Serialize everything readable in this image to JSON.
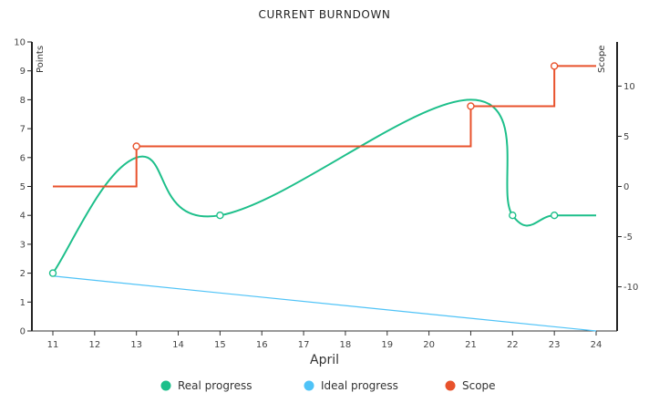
{
  "chart_data": {
    "type": "line",
    "title": "CURRENT BURNDOWN",
    "xlabel": "April",
    "ylabel_left": "Points",
    "ylabel_right": "Scope",
    "x_ticks": [
      11,
      12,
      13,
      14,
      15,
      16,
      17,
      18,
      19,
      20,
      21,
      22,
      23,
      24
    ],
    "ylim_left": [
      0,
      10
    ],
    "yticks_left": [
      0,
      1,
      2,
      3,
      4,
      5,
      6,
      7,
      8,
      9,
      10
    ],
    "ylim_right": [
      -14.4,
      14.4
    ],
    "yticks_right": [
      -10,
      -5,
      0,
      5,
      10
    ],
    "grid": false,
    "legend_position": "bottom",
    "series": [
      {
        "name": "Real progress",
        "axis": "left",
        "color": "#1dbf8a",
        "style": "smooth",
        "x": [
          11,
          13,
          15,
          21,
          22,
          23,
          24
        ],
        "y": [
          2,
          6,
          4,
          8,
          4,
          4,
          4
        ],
        "markers": [
          11,
          15,
          22,
          23
        ]
      },
      {
        "name": "Ideal progress",
        "axis": "left",
        "color": "#4fc3f7",
        "style": "straight",
        "x": [
          11,
          24
        ],
        "y": [
          1.9,
          0
        ],
        "markers": []
      },
      {
        "name": "Scope",
        "axis": "right",
        "color": "#e8522c",
        "style": "step",
        "x": [
          11,
          13,
          21,
          23,
          24
        ],
        "y": [
          0,
          4,
          8,
          12,
          12
        ],
        "markers": [
          13,
          21,
          23
        ]
      }
    ]
  }
}
